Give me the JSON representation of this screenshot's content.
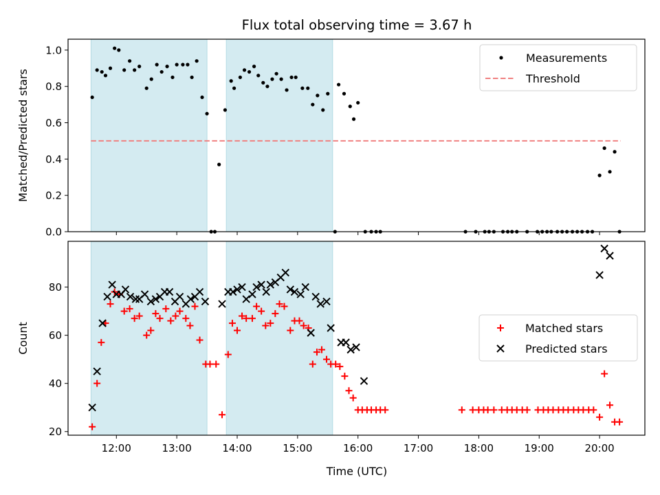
{
  "figure": {
    "title": "Flux total observing time = 3.67 h",
    "xlabel": "Time (UTC)"
  },
  "chart_data": [
    {
      "type": "scatter",
      "ylabel": "Matched/Predicted stars",
      "ylim": [
        0.0,
        1.06
      ],
      "xlim_hours": [
        11.2,
        20.75
      ],
      "yticks": [
        0.0,
        0.2,
        0.4,
        0.6,
        0.8,
        1.0
      ],
      "ytick_labels": [
        "0.0",
        "0.2",
        "0.4",
        "0.6",
        "0.8",
        "1.0"
      ],
      "xticks": [
        12,
        13,
        14,
        15,
        16,
        17,
        18,
        19,
        20
      ],
      "xtick_labels": [
        "12:00",
        "13:00",
        "14:00",
        "15:00",
        "16:00",
        "17:00",
        "18:00",
        "19:00",
        "20:00"
      ],
      "legend_position": "top-right",
      "shaded_intervals": [
        [
          11.58,
          13.5
        ],
        [
          13.82,
          15.58
        ]
      ],
      "shade_color": "#d4ebf1",
      "series": [
        {
          "name": "Measurements",
          "marker": "dot",
          "color": "#000000",
          "points": [
            [
              11.6,
              0.74
            ],
            [
              11.68,
              0.89
            ],
            [
              11.76,
              0.88
            ],
            [
              11.82,
              0.86
            ],
            [
              11.9,
              0.9
            ],
            [
              11.97,
              1.01
            ],
            [
              12.04,
              1.0
            ],
            [
              12.13,
              0.89
            ],
            [
              12.22,
              0.94
            ],
            [
              12.3,
              0.89
            ],
            [
              12.38,
              0.91
            ],
            [
              12.5,
              0.79
            ],
            [
              12.58,
              0.84
            ],
            [
              12.67,
              0.92
            ],
            [
              12.75,
              0.88
            ],
            [
              12.84,
              0.91
            ],
            [
              12.93,
              0.85
            ],
            [
              13.0,
              0.92
            ],
            [
              13.1,
              0.92
            ],
            [
              13.18,
              0.92
            ],
            [
              13.25,
              0.85
            ],
            [
              13.33,
              0.94
            ],
            [
              13.42,
              0.74
            ],
            [
              13.5,
              0.65
            ],
            [
              13.57,
              0.0
            ],
            [
              13.63,
              0.0
            ],
            [
              13.7,
              0.37
            ],
            [
              13.8,
              0.67
            ],
            [
              13.9,
              0.83
            ],
            [
              13.95,
              0.79
            ],
            [
              14.05,
              0.85
            ],
            [
              14.12,
              0.89
            ],
            [
              14.2,
              0.88
            ],
            [
              14.28,
              0.91
            ],
            [
              14.35,
              0.86
            ],
            [
              14.43,
              0.82
            ],
            [
              14.5,
              0.8
            ],
            [
              14.58,
              0.84
            ],
            [
              14.65,
              0.87
            ],
            [
              14.73,
              0.84
            ],
            [
              14.82,
              0.78
            ],
            [
              14.9,
              0.85
            ],
            [
              14.97,
              0.85
            ],
            [
              15.08,
              0.79
            ],
            [
              15.17,
              0.79
            ],
            [
              15.25,
              0.7
            ],
            [
              15.33,
              0.75
            ],
            [
              15.42,
              0.67
            ],
            [
              15.5,
              0.76
            ],
            [
              15.62,
              0.0
            ],
            [
              15.68,
              0.81
            ],
            [
              15.77,
              0.76
            ],
            [
              15.87,
              0.69
            ],
            [
              15.93,
              0.62
            ],
            [
              16.0,
              0.71
            ],
            [
              16.12,
              0.0
            ],
            [
              16.22,
              0.0
            ],
            [
              16.3,
              0.0
            ],
            [
              16.37,
              0.0
            ],
            [
              17.78,
              0.0
            ],
            [
              17.95,
              0.0
            ],
            [
              18.1,
              0.0
            ],
            [
              18.17,
              0.0
            ],
            [
              18.25,
              0.0
            ],
            [
              18.4,
              0.0
            ],
            [
              18.48,
              0.0
            ],
            [
              18.55,
              0.0
            ],
            [
              18.63,
              0.0
            ],
            [
              18.8,
              0.0
            ],
            [
              18.97,
              0.0
            ],
            [
              19.05,
              0.0
            ],
            [
              19.13,
              0.0
            ],
            [
              19.2,
              0.0
            ],
            [
              19.3,
              0.0
            ],
            [
              19.38,
              0.0
            ],
            [
              19.46,
              0.0
            ],
            [
              19.55,
              0.0
            ],
            [
              19.63,
              0.0
            ],
            [
              19.71,
              0.0
            ],
            [
              19.8,
              0.0
            ],
            [
              19.88,
              0.0
            ],
            [
              20.0,
              0.31
            ],
            [
              20.08,
              0.46
            ],
            [
              20.17,
              0.33
            ],
            [
              20.25,
              0.44
            ],
            [
              20.33,
              0.0
            ]
          ]
        },
        {
          "name": "Threshold",
          "marker": "dashed-line",
          "color": "#f08080",
          "points": [
            [
              11.58,
              0.5
            ],
            [
              20.35,
              0.5
            ]
          ]
        }
      ]
    },
    {
      "type": "scatter",
      "ylabel": "Count",
      "ylim": [
        18.5,
        99
      ],
      "xlim_hours": [
        11.2,
        20.75
      ],
      "yticks": [
        20,
        40,
        60,
        80
      ],
      "ytick_labels": [
        "20",
        "40",
        "60",
        "80"
      ],
      "xticks": [
        12,
        13,
        14,
        15,
        16,
        17,
        18,
        19,
        20
      ],
      "xtick_labels": [
        "12:00",
        "13:00",
        "14:00",
        "15:00",
        "16:00",
        "17:00",
        "18:00",
        "19:00",
        "20:00"
      ],
      "legend_position": "center-right",
      "shaded_intervals": [
        [
          11.58,
          13.5
        ],
        [
          13.82,
          15.58
        ]
      ],
      "shade_color": "#d4ebf1",
      "series": [
        {
          "name": "Matched stars",
          "marker": "plus",
          "color": "#ff0000",
          "points": [
            [
              11.6,
              22
            ],
            [
              11.68,
              40
            ],
            [
              11.75,
              57
            ],
            [
              11.82,
              65
            ],
            [
              11.9,
              73
            ],
            [
              11.97,
              78
            ],
            [
              12.05,
              77
            ],
            [
              12.13,
              70
            ],
            [
              12.22,
              71
            ],
            [
              12.3,
              67
            ],
            [
              12.38,
              68
            ],
            [
              12.5,
              60
            ],
            [
              12.57,
              62
            ],
            [
              12.65,
              69
            ],
            [
              12.72,
              67
            ],
            [
              12.82,
              71
            ],
            [
              12.9,
              66
            ],
            [
              12.98,
              68
            ],
            [
              13.05,
              70
            ],
            [
              13.15,
              67
            ],
            [
              13.22,
              64
            ],
            [
              13.3,
              72
            ],
            [
              13.38,
              58
            ],
            [
              13.48,
              48
            ],
            [
              13.55,
              48
            ],
            [
              13.65,
              48
            ],
            [
              13.75,
              27
            ],
            [
              13.85,
              52
            ],
            [
              13.92,
              65
            ],
            [
              14.0,
              62
            ],
            [
              14.08,
              68
            ],
            [
              14.15,
              67
            ],
            [
              14.25,
              67
            ],
            [
              14.32,
              72
            ],
            [
              14.4,
              70
            ],
            [
              14.47,
              64
            ],
            [
              14.55,
              65
            ],
            [
              14.63,
              69
            ],
            [
              14.7,
              73
            ],
            [
              14.78,
              72
            ],
            [
              14.88,
              62
            ],
            [
              14.95,
              66
            ],
            [
              15.03,
              66
            ],
            [
              15.1,
              64
            ],
            [
              15.18,
              63
            ],
            [
              15.25,
              48
            ],
            [
              15.32,
              53
            ],
            [
              15.4,
              54
            ],
            [
              15.48,
              50
            ],
            [
              15.55,
              48
            ],
            [
              15.63,
              48
            ],
            [
              15.7,
              47
            ],
            [
              15.78,
              43
            ],
            [
              15.85,
              37
            ],
            [
              15.92,
              34
            ],
            [
              16.0,
              29
            ],
            [
              16.07,
              29
            ],
            [
              16.15,
              29
            ],
            [
              16.22,
              29
            ],
            [
              16.3,
              29
            ],
            [
              16.37,
              29
            ],
            [
              16.45,
              29
            ],
            [
              17.72,
              29
            ],
            [
              17.9,
              29
            ],
            [
              18.0,
              29
            ],
            [
              18.08,
              29
            ],
            [
              18.15,
              29
            ],
            [
              18.25,
              29
            ],
            [
              18.38,
              29
            ],
            [
              18.47,
              29
            ],
            [
              18.55,
              29
            ],
            [
              18.63,
              29
            ],
            [
              18.72,
              29
            ],
            [
              18.8,
              29
            ],
            [
              18.98,
              29
            ],
            [
              19.07,
              29
            ],
            [
              19.15,
              29
            ],
            [
              19.23,
              29
            ],
            [
              19.32,
              29
            ],
            [
              19.4,
              29
            ],
            [
              19.48,
              29
            ],
            [
              19.57,
              29
            ],
            [
              19.65,
              29
            ],
            [
              19.73,
              29
            ],
            [
              19.82,
              29
            ],
            [
              19.9,
              29
            ],
            [
              20.0,
              26
            ],
            [
              20.08,
              44
            ],
            [
              20.17,
              31
            ],
            [
              20.25,
              24
            ],
            [
              20.33,
              24
            ]
          ]
        },
        {
          "name": "Predicted stars",
          "marker": "x",
          "color": "#000000",
          "points": [
            [
              11.6,
              30
            ],
            [
              11.68,
              45
            ],
            [
              11.77,
              65
            ],
            [
              11.85,
              76
            ],
            [
              11.93,
              81
            ],
            [
              12.0,
              77
            ],
            [
              12.08,
              77
            ],
            [
              12.15,
              79
            ],
            [
              12.23,
              76
            ],
            [
              12.32,
              75
            ],
            [
              12.38,
              75
            ],
            [
              12.47,
              77
            ],
            [
              12.57,
              74
            ],
            [
              12.65,
              75
            ],
            [
              12.72,
              76
            ],
            [
              12.8,
              78
            ],
            [
              12.88,
              78
            ],
            [
              12.97,
              74
            ],
            [
              13.05,
              76
            ],
            [
              13.15,
              73
            ],
            [
              13.23,
              75
            ],
            [
              13.3,
              76
            ],
            [
              13.38,
              78
            ],
            [
              13.47,
              74
            ],
            [
              13.75,
              73
            ],
            [
              13.85,
              78
            ],
            [
              13.93,
              78
            ],
            [
              14.0,
              79
            ],
            [
              14.08,
              80
            ],
            [
              14.15,
              75
            ],
            [
              14.25,
              77
            ],
            [
              14.32,
              80
            ],
            [
              14.4,
              81
            ],
            [
              14.48,
              78
            ],
            [
              14.55,
              81
            ],
            [
              14.63,
              82
            ],
            [
              14.72,
              84
            ],
            [
              14.8,
              86
            ],
            [
              14.88,
              79
            ],
            [
              14.95,
              78
            ],
            [
              15.05,
              77
            ],
            [
              15.13,
              80
            ],
            [
              15.22,
              61
            ],
            [
              15.3,
              76
            ],
            [
              15.38,
              73
            ],
            [
              15.48,
              74
            ],
            [
              15.55,
              63
            ],
            [
              15.72,
              57
            ],
            [
              15.8,
              57
            ],
            [
              15.88,
              54
            ],
            [
              15.97,
              55
            ],
            [
              16.1,
              41
            ],
            [
              20.0,
              85
            ],
            [
              20.08,
              96
            ],
            [
              20.17,
              93
            ]
          ]
        }
      ]
    }
  ]
}
